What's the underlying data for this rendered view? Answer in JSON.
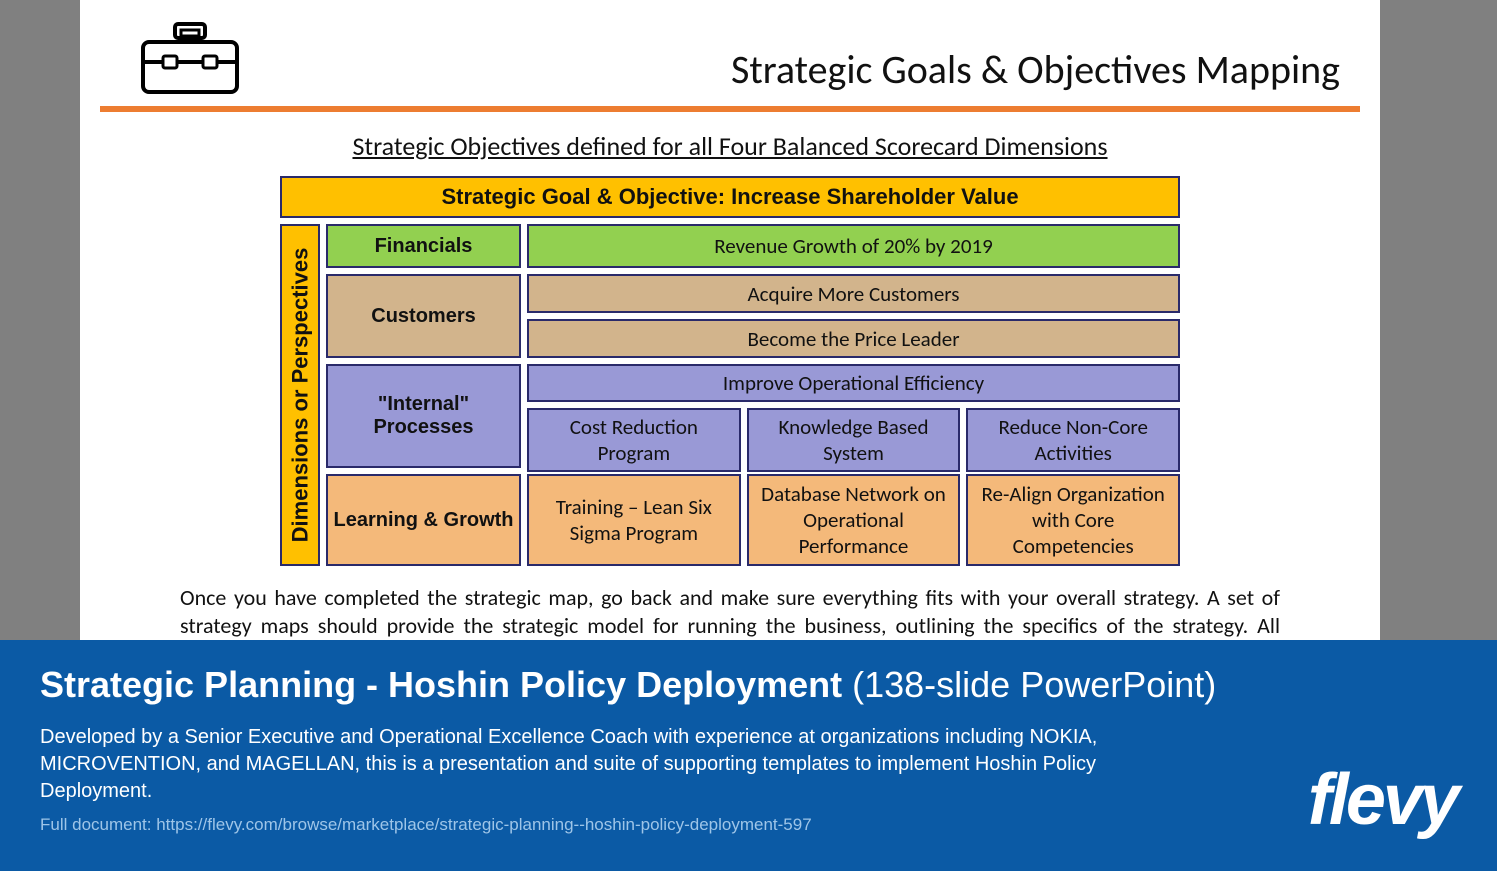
{
  "colors": {
    "page_bg": "#808080",
    "slide_bg": "#ffffff",
    "divider": "#ed7d31",
    "cell_border": "#2a2a6a",
    "gold": "#ffc000",
    "green": "#92d050",
    "tan": "#d2b48c",
    "violet": "#9999d6",
    "peach": "#f4b97a",
    "promo_bg": "#0b5aa5",
    "promo_link": "#9ec5e8"
  },
  "header": {
    "title": "Strategic Goals & Objectives Mapping"
  },
  "subtitle": "Strategic Objectives defined for all Four Balanced Scorecard Dimensions",
  "matrix": {
    "goal_bar": "Strategic Goal & Objective: Increase Shareholder Value",
    "vlabel": "Dimensions or Perspectives",
    "rows": [
      {
        "dim": "Financials",
        "color": "green",
        "objectives_full": [
          "Revenue Growth of 20% by 2019"
        ]
      },
      {
        "dim": "Customers",
        "color": "tan",
        "objectives_full": [
          "Acquire More Customers",
          "Become the Price Leader"
        ]
      },
      {
        "dim": "\"Internal\" Processes",
        "color": "violet",
        "objectives_full": [
          "Improve Operational Efficiency"
        ],
        "objectives_sub": [
          "Cost Reduction Program",
          "Knowledge Based System",
          "Reduce Non-Core Activities"
        ]
      },
      {
        "dim": "Learning & Growth",
        "color": "peach",
        "objectives_sub": [
          "Training – Lean Six Sigma Program",
          "Database Network on Operational Performance",
          "Re-Align Organization with Core Competencies"
        ]
      }
    ]
  },
  "body_text": "Once you have completed the strategic map, go back and make sure everything fits with your overall strategy. A set of strategy maps should provide the strategic model for running the business, outlining the specifics of the strategy. All stakeholders should be able to look at the map and follow the flow of the organization's strategy.",
  "promo": {
    "title_bold": "Strategic Planning - Hoshin Policy Deployment",
    "title_rest": " (138-slide PowerPoint)",
    "description": "Developed by a Senior Executive and Operational Excellence Coach with experience at organizations including NOKIA, MICROVENTION, and MAGELLAN, this is a presentation and suite of supporting templates to implement Hoshin Policy Deployment.",
    "link_label": "Full document: https://flevy.com/browse/marketplace/strategic-planning--hoshin-policy-deployment-597",
    "logo": "flevy"
  }
}
